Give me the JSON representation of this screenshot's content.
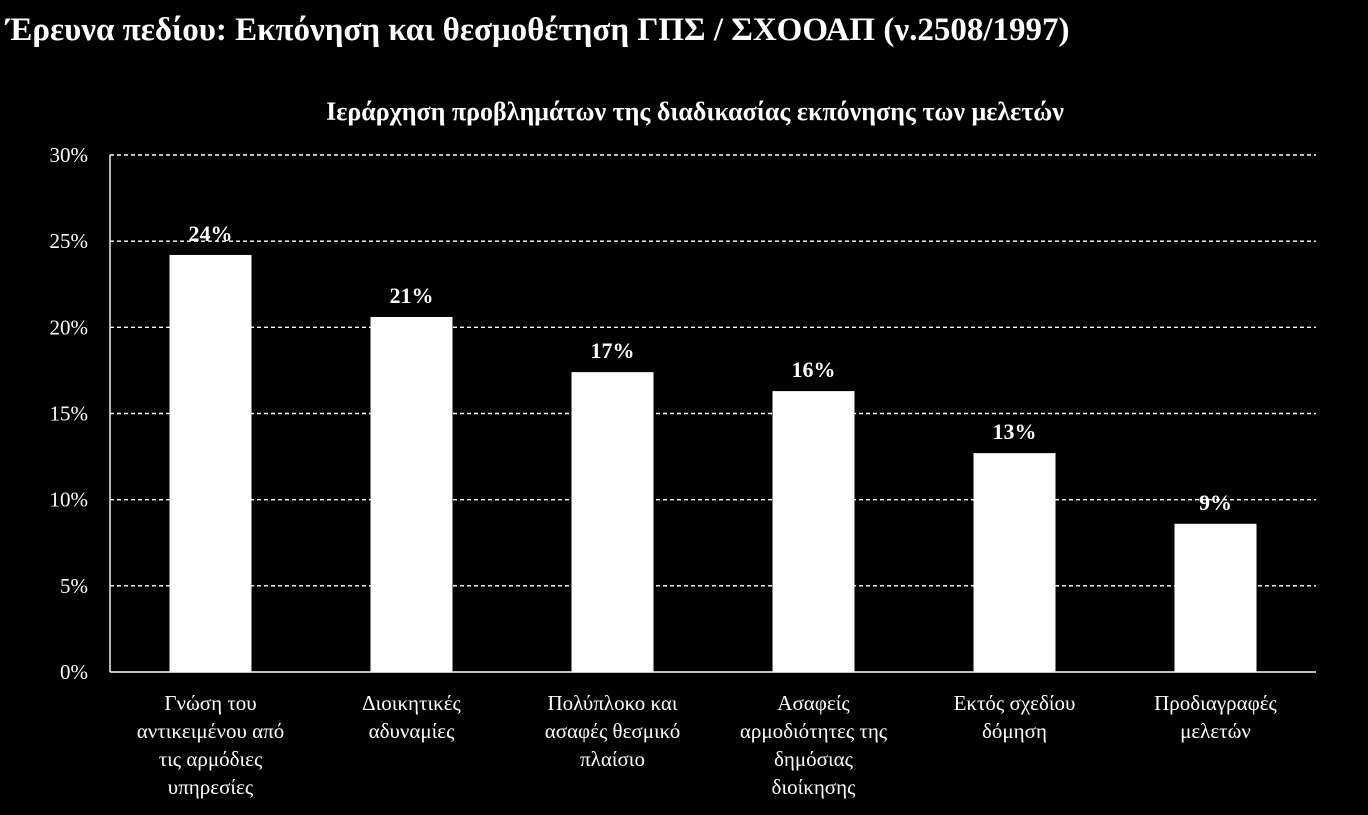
{
  "page": {
    "title": "Έρευνα πεδίου: Εκπόνηση και θεσμοθέτηση ΓΠΣ / ΣΧΟΟΑΠ (ν.2508/1997)"
  },
  "chart_data": {
    "type": "bar",
    "title": "Ιεράρχηση προβλημάτων της διαδικασίας εκπόνησης των μελετών",
    "categories": [
      [
        "Γνώση του",
        "αντικειμένου από",
        "τις αρμόδιες",
        "υπηρεσίες"
      ],
      [
        "Διοικητικές",
        "αδυναμίες"
      ],
      [
        "Πολύπλοκο και",
        "ασαφές θεσμικό",
        "πλαίσιο"
      ],
      [
        "Ασαφείς",
        "αρμοδιότητες της",
        "δημόσιας",
        "διοίκησης"
      ],
      [
        "Εκτός σχεδίου",
        "δόμηση"
      ],
      [
        "Προδιαγραφές",
        "μελετών"
      ]
    ],
    "values": [
      24.2,
      20.6,
      17.4,
      16.3,
      12.7,
      8.6
    ],
    "data_labels": [
      "24%",
      "21%",
      "17%",
      "16%",
      "13%",
      "9%"
    ],
    "yticks": [
      "0%",
      "5%",
      "10%",
      "15%",
      "20%",
      "25%",
      "30%"
    ],
    "ylim": [
      0,
      30
    ],
    "grid": true,
    "colors": {
      "bar": "#ffffff",
      "background": "#000000",
      "text": "#ffffff"
    }
  }
}
